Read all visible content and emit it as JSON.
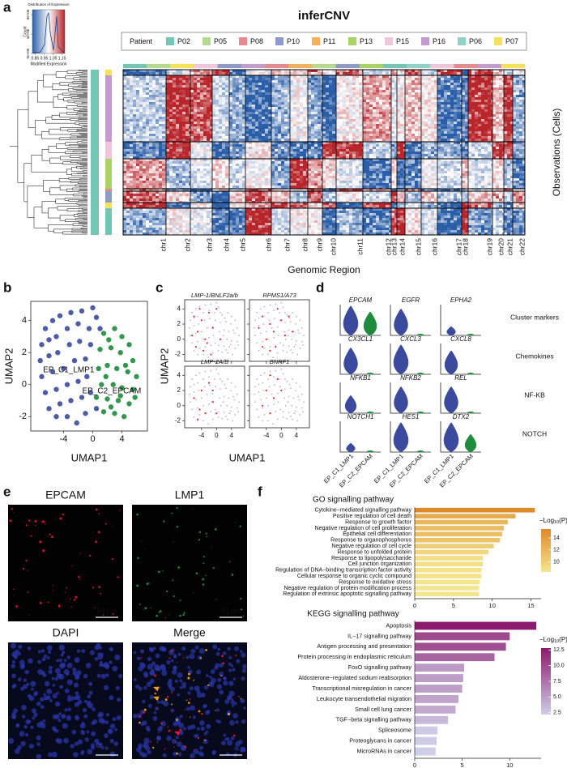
{
  "chart_data": [
    {
      "type": "heatmap",
      "panel_label": "a",
      "title": "inferCNV",
      "colorbar": {
        "title": "Distribution of Expression",
        "ylabel": "Count",
        "xlabel": "Modified Expression",
        "xlim": [
          0.82,
          1.18
        ],
        "xticks": [
          0.85,
          0.95,
          1.05,
          1.15
        ],
        "ylim": [
          0,
          9000000
        ],
        "yticks": [
          {
            "value": 0,
            "label": "0e+00"
          },
          {
            "value": 4000000,
            "label": "4e+06"
          },
          {
            "value": 8000000,
            "label": "8e+06"
          }
        ],
        "colors": [
          "#2b5ea8",
          "#ffffff",
          "#b8262c"
        ]
      },
      "legend_title": "Patient",
      "series": [
        {
          "name": "P02",
          "color": "#72c6b6"
        },
        {
          "name": "P05",
          "color": "#b5dc8c"
        },
        {
          "name": "P08",
          "color": "#e68a8c"
        },
        {
          "name": "P10",
          "color": "#8d9bc8"
        },
        {
          "name": "P11",
          "color": "#f2b25c"
        },
        {
          "name": "P13",
          "color": "#a8d365"
        },
        {
          "name": "P15",
          "color": "#f1c6dc"
        },
        {
          "name": "P16",
          "color": "#c49ad0"
        },
        {
          "name": "P06",
          "color": "#8fd3c8"
        },
        {
          "name": "P07",
          "color": "#f5e15a"
        }
      ],
      "categories": [
        "chr1",
        "chr2",
        "chr3",
        "chr4",
        "chr5",
        "chr6",
        "chr7",
        "chr8",
        "chr9",
        "chr10",
        "chr11",
        "chr12",
        "chr13",
        "chr14",
        "chr15",
        "chr16",
        "chr17",
        "chr18",
        "chr19",
        "chr20",
        "chr21",
        "chr22"
      ],
      "xlabel": "Genomic Region",
      "ylabel": "Observations (Cells)"
    },
    {
      "type": "scatter",
      "panel_label": "b",
      "xlabel": "UMAP1",
      "ylabel": "UMAP2",
      "xlim": [
        -8.5,
        7.5
      ],
      "ylim": [
        -2.9,
        5.2
      ],
      "xticks": [
        -4,
        0,
        4
      ],
      "yticks": [
        -2,
        0,
        2,
        4
      ],
      "series": [
        {
          "name": "EP_C1_LMP1",
          "color": "#3b4a9c",
          "x": [
            -6.5,
            -5.5,
            -4.5,
            -3,
            -1.5,
            0,
            0.5,
            -7,
            -6,
            -5,
            -3.5,
            -2,
            -0.5,
            1,
            -7.2,
            -6,
            -4.8,
            -3.2,
            -1.8,
            -0.3,
            -7,
            -5.5,
            -4,
            -2.5,
            -1,
            -6.5,
            -5,
            -3.5,
            -2,
            -0.8,
            -6,
            -4.5,
            -3,
            -1.5,
            -0.3,
            -5,
            -3.5,
            -2.2,
            -1,
            0.5
          ],
          "y": [
            3.5,
            4,
            4.3,
            4.5,
            4.6,
            4.8,
            4.2,
            2.5,
            2.8,
            3,
            3.5,
            3.8,
            3.5,
            3.5,
            1.5,
            1.8,
            2,
            2.5,
            2.7,
            2.5,
            0.5,
            0.8,
            1,
            1.5,
            1.6,
            -0.5,
            -0.3,
            0,
            0.2,
            0.5,
            -1.5,
            -1.2,
            -1,
            -0.8,
            -0.5,
            -2,
            -2,
            -2.4,
            -1.8,
            -1.5
          ]
        },
        {
          "name": "EP_C2_EPCAM",
          "color": "#1e8c3c",
          "x": [
            1.5,
            3,
            4,
            5,
            1,
            2.5,
            3.8,
            5.5,
            0.8,
            2,
            3.3,
            4.8,
            6,
            1.2,
            2.8,
            4,
            5.5,
            0.5,
            2,
            3.5,
            5,
            1.5,
            3,
            4.3,
            2.2,
            4.5,
            1.8,
            3.8,
            5.8,
            2.5
          ],
          "y": [
            3.2,
            3.5,
            3,
            2.5,
            2.2,
            2.3,
            2,
            1.5,
            1,
            1.2,
            1,
            0.8,
            0.5,
            0,
            0,
            -0.2,
            -0.3,
            -0.8,
            -0.9,
            -1,
            -1.2,
            -1.7,
            -1.8,
            -2,
            2.8,
            1.2,
            0.5,
            -0.7,
            -0.8,
            -1.4
          ]
        }
      ]
    },
    {
      "type": "scatter-facets",
      "panel_label": "c",
      "xlabel": "UMAP1",
      "ylabel": "UMAP2",
      "xlim": [
        -8.5,
        7.5
      ],
      "ylim": [
        -2.9,
        5.2
      ],
      "xticks": [
        -4,
        0,
        4
      ],
      "yticks": [
        -2,
        0,
        2,
        4
      ],
      "highlight_color": "#e0262e",
      "background_color": "#b8b8b8",
      "facets": [
        {
          "title": "LMP-1/BNLF2a/b",
          "x": [
            -6,
            -5,
            -4,
            -3,
            -2,
            -5.5,
            -3.5,
            -1,
            -2.5,
            0,
            -4.5,
            1,
            -6.5,
            -1.5
          ],
          "y": [
            3,
            1,
            2.5,
            0,
            3.5,
            -1,
            -1.5,
            1.5,
            -0.5,
            4,
            4,
            0,
            0.5,
            -2
          ]
        },
        {
          "title": "RPMS1/A73",
          "x": [
            -5,
            -3,
            -1,
            -4,
            -2,
            -6,
            -3,
            0,
            2,
            -1.5,
            -5,
            1,
            3
          ],
          "y": [
            3,
            2,
            4,
            0,
            1,
            1.5,
            -1.5,
            2.5,
            3,
            -1,
            -1,
            0.5,
            1
          ]
        },
        {
          "title": "LMP-2A/B",
          "x": [
            -6,
            -4,
            -3,
            -1,
            -5,
            -2,
            0,
            -4.5,
            -1
          ],
          "y": [
            1,
            2,
            -1,
            0.5,
            -1.8,
            3,
            -1,
            -0.5,
            2
          ]
        },
        {
          "title": "BNRF1",
          "x": [
            -3,
            -1,
            -2,
            -4,
            0,
            -5,
            -3
          ],
          "y": [
            4,
            3.5,
            1,
            2,
            2,
            0,
            -1
          ]
        }
      ]
    },
    {
      "type": "violin",
      "panel_label": "d",
      "categories": [
        "EP_C1_LMP1",
        "EP_C2_EPCAM"
      ],
      "colors": [
        "#3b4a9c",
        "#1e8c3c"
      ],
      "groups": [
        {
          "name": "Cluster markers",
          "genes": [
            {
              "name": "EPCAM",
              "values": [
                1,
                0.8
              ]
            },
            {
              "name": "EGFR",
              "values": [
                0.9,
                0.05
              ]
            },
            {
              "name": "EPHA2",
              "values": [
                0.3,
                0.05
              ]
            }
          ]
        },
        {
          "name": "Chemokines",
          "genes": [
            {
              "name": "CX3CL1",
              "values": [
                0.9,
                0.05
              ]
            },
            {
              "name": "CXCL3",
              "values": [
                1,
                0.05
              ]
            },
            {
              "name": "CXCL8",
              "values": [
                0.8,
                0.05
              ]
            }
          ]
        },
        {
          "name": "NF-KB",
          "genes": [
            {
              "name": "NFKB1",
              "values": [
                0.6,
                0.05
              ]
            },
            {
              "name": "NFKB2",
              "values": [
                0.9,
                0.05
              ]
            },
            {
              "name": "REL",
              "values": [
                0.9,
                0.05
              ]
            }
          ]
        },
        {
          "name": "NOTCH",
          "genes": [
            {
              "name": "NOTCH1",
              "values": [
                0.3,
                0.05
              ]
            },
            {
              "name": "HES1",
              "values": [
                1,
                0.05
              ]
            },
            {
              "name": "DTX2",
              "values": [
                1,
                0.6
              ]
            }
          ]
        }
      ]
    },
    {
      "type": "image-grid",
      "panel_label": "e",
      "panels": [
        {
          "title": "EPCAM",
          "color": "#e3163e",
          "scale_bar": "50 μm"
        },
        {
          "title": "LMP1",
          "color": "#1f9a4a",
          "scale_bar": "50 μm"
        },
        {
          "title": "DAPI",
          "color": "#2a36a8",
          "scale_bar": "50 μm"
        },
        {
          "title": "Merge",
          "color": "#f0a020",
          "scale_bar": "50 μm"
        }
      ]
    },
    {
      "type": "hbar",
      "panel_label": "f",
      "charts": [
        {
          "title": "GO signalling pathway",
          "categories": [
            "Cytokine−mediated signalling pathway",
            "Positive regulation of cell death",
            "Response to growth factor",
            "Negative regulation of cell proliferation",
            "Epithelial cell differentiation",
            "Response to organophosphorus",
            "Negative regulation of cell cycle",
            "Response to unfolded protein",
            "Response to lipopolysaccharide",
            "Cell junction organization",
            "Regulation of DNA−binding transcription factor activity",
            "Cellular response to organic cyclic compound",
            "Response to oxidative stress",
            "Negative regulation of protein modification process",
            "Regulation of extrinsic apoptotic signalling pathway"
          ],
          "values": [
            15.5,
            13,
            12,
            11.5,
            11.3,
            11,
            10.2,
            9.5,
            8.8,
            8.8,
            8.6,
            8.6,
            8.4,
            8.3,
            8.3
          ],
          "xlim": [
            0,
            16.3
          ],
          "xticks": [
            0,
            5,
            10,
            15
          ],
          "legend_title": [
            "−Log",
            "10",
            "(P)"
          ],
          "colorbar_lim": [
            8.3,
            15.5
          ],
          "colorbar_ticks": [
            10,
            12,
            14
          ],
          "colors": [
            "#f4e68e",
            "#e0882a"
          ]
        },
        {
          "title": "KEGG  signalling pathway",
          "categories": [
            "Apoptosis",
            "IL−17 signalling pathway",
            "Antigen processing and presentation",
            "Protein processing in endoplasmic reticulum",
            "FoxO signalling pathway",
            "Aldosterone−regulated sodium reabsorption",
            "Transcriptional misregulation in cancer",
            "Leukocyte transendothelial migration",
            "Small cell lung cancer",
            "TGF−beta signalling pathway",
            "Spliceosome",
            "Proteoglycans in cancer",
            "MicroRNAs in cancer"
          ],
          "values": [
            12.8,
            10,
            9.6,
            8.4,
            5.2,
            5.1,
            5,
            4.6,
            4.3,
            3.5,
            2.4,
            2.3,
            2.2
          ],
          "xlim": [
            0,
            13.3
          ],
          "xticks": [
            0,
            5,
            10
          ],
          "legend_title": [
            "−Log",
            "10",
            "(P)"
          ],
          "colorbar_lim": [
            2.2,
            12.8
          ],
          "colorbar_ticks": [
            2.5,
            {
              "value": 5,
              "label": "5.0"
            },
            7.5,
            {
              "value": 10,
              "label": "10.0"
            },
            12.5
          ],
          "colors": [
            "#cfcde8",
            "#8c1a6c"
          ]
        }
      ]
    }
  ]
}
